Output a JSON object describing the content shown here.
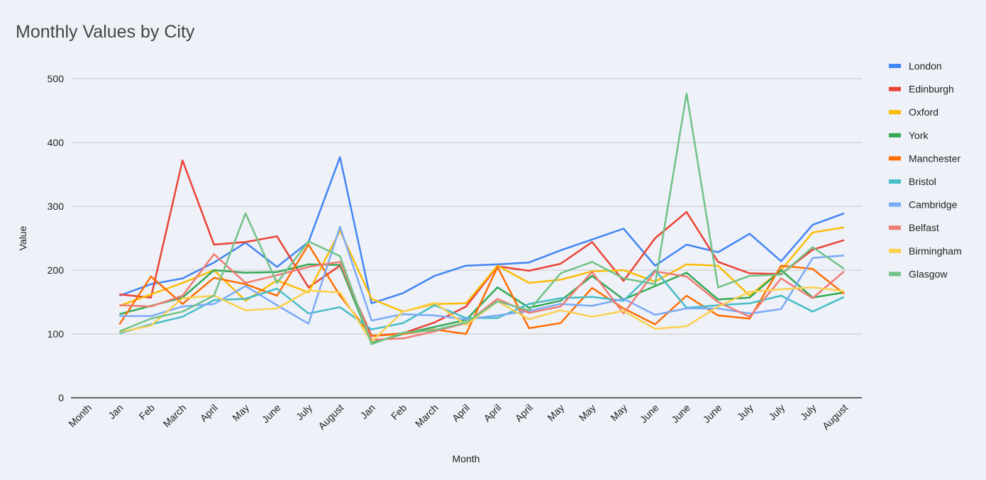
{
  "chart_data": {
    "type": "line",
    "title": "Monthly Values by City",
    "xlabel": "Month",
    "ylabel": "Value",
    "ylim": [
      0,
      500
    ],
    "yticks": [
      0,
      100,
      200,
      300,
      400,
      500
    ],
    "grid": true,
    "legend_position": "right",
    "categories": [
      "Month",
      "Jan",
      "Feb",
      "March",
      "April",
      "May",
      "June",
      "July",
      "August",
      "Jan",
      "Feb",
      "March",
      "April",
      "April",
      "April",
      "May",
      "May",
      "May",
      "June",
      "June",
      "June",
      "July",
      "July",
      "July",
      "August"
    ],
    "series": [
      {
        "name": "London",
        "color": "#4285f4",
        "values": [
          null,
          160,
          178,
          187,
          212,
          243,
          205,
          244,
          377,
          148,
          164,
          191,
          207,
          209,
          212,
          231,
          248,
          265,
          207,
          240,
          228,
          257,
          214,
          271,
          289
        ]
      },
      {
        "name": "Edinburgh",
        "color": "#ea4335",
        "values": [
          null,
          162,
          157,
          372,
          240,
          244,
          253,
          173,
          207,
          97,
          101,
          118,
          143,
          206,
          199,
          210,
          244,
          183,
          250,
          291,
          213,
          195,
          194,
          232,
          247
        ]
      },
      {
        "name": "Oxford",
        "color": "#fbbc04",
        "values": [
          null,
          144,
          162,
          180,
          200,
          152,
          184,
          165,
          262,
          155,
          135,
          147,
          148,
          207,
          180,
          185,
          198,
          200,
          182,
          209,
          207,
          160,
          200,
          259,
          267
        ]
      },
      {
        "name": "York",
        "color": "#34a853",
        "values": [
          null,
          131,
          144,
          157,
          200,
          196,
          197,
          209,
          208,
          86,
          100,
          111,
          122,
          173,
          141,
          152,
          191,
          154,
          175,
          196,
          154,
          157,
          200,
          157,
          165
        ]
      },
      {
        "name": "Manchester",
        "color": "#ff6d01",
        "values": [
          null,
          115,
          190,
          147,
          188,
          178,
          160,
          240,
          160,
          97,
          100,
          107,
          100,
          205,
          109,
          117,
          172,
          140,
          115,
          160,
          129,
          124,
          207,
          202,
          163
        ]
      },
      {
        "name": "Bristol",
        "color": "#46bdc6",
        "values": [
          null,
          101,
          115,
          127,
          153,
          155,
          171,
          132,
          142,
          107,
          117,
          145,
          125,
          125,
          147,
          156,
          158,
          152,
          200,
          141,
          145,
          148,
          160,
          135,
          158
        ]
      },
      {
        "name": "Cambridge",
        "color": "#7baaf7",
        "values": [
          null,
          128,
          128,
          143,
          147,
          175,
          145,
          116,
          268,
          121,
          131,
          129,
          123,
          129,
          136,
          147,
          144,
          155,
          130,
          140,
          140,
          132,
          139,
          219,
          223
        ]
      },
      {
        "name": "Belfast",
        "color": "#f07b72",
        "values": [
          null,
          145,
          143,
          160,
          225,
          180,
          192,
          205,
          213,
          91,
          93,
          104,
          117,
          155,
          133,
          143,
          197,
          132,
          198,
          190,
          150,
          127,
          187,
          156,
          198
        ]
      },
      {
        "name": "Birmingham",
        "color": "#fcd04f",
        "values": [
          null,
          103,
          113,
          156,
          160,
          137,
          140,
          168,
          165,
          88,
          135,
          149,
          114,
          151,
          123,
          137,
          127,
          136,
          108,
          112,
          143,
          166,
          170,
          173,
          167
        ]
      },
      {
        "name": "Glasgow",
        "color": "#71c287",
        "values": [
          null,
          104,
          124,
          135,
          160,
          289,
          180,
          245,
          222,
          84,
          102,
          106,
          118,
          151,
          137,
          195,
          213,
          187,
          178,
          477,
          173,
          191,
          193,
          236,
          202
        ]
      }
    ]
  }
}
